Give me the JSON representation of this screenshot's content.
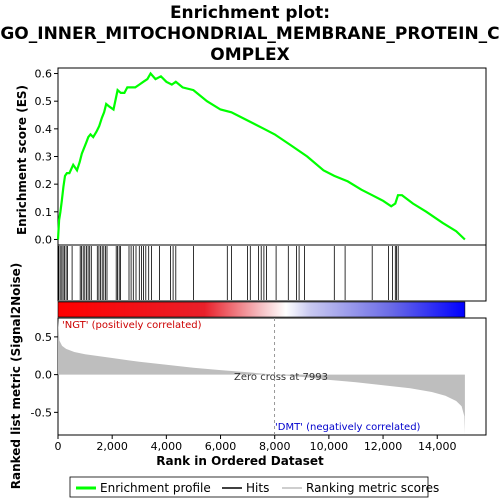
{
  "chart_data": {
    "type": "line",
    "title_lines": [
      "Enrichment plot:",
      "GO_INNER_MITOCHONDRIAL_MEMBRANE_PROTEIN_C",
      "OMPLEX"
    ],
    "top_panel": {
      "ylabel": "Enrichment score (ES)",
      "ylim": [
        -0.02,
        0.62
      ],
      "yticks": [
        0.0,
        0.1,
        0.2,
        0.3,
        0.4,
        0.5,
        0.6
      ],
      "ytick_labels": [
        "0.0",
        "0.1",
        "0.2",
        "0.3",
        "0.4",
        "0.5",
        "0.6"
      ],
      "series": [
        {
          "name": "Enrichment profile",
          "color": "#00ff00",
          "x": [
            0,
            40,
            90,
            140,
            200,
            260,
            330,
            420,
            560,
            700,
            800,
            880,
            960,
            1040,
            1120,
            1200,
            1300,
            1420,
            1520,
            1620,
            1700,
            1780,
            1900,
            2050,
            2200,
            2320,
            2450,
            2560,
            2700,
            2850,
            3000,
            3150,
            3300,
            3420,
            3600,
            3800,
            4000,
            4200,
            4350,
            4600,
            5000,
            5500,
            6000,
            6400,
            7000,
            7600,
            8000,
            8600,
            9200,
            9800,
            10200,
            10700,
            11200,
            11600,
            12000,
            12300,
            12450,
            12550,
            12700,
            13100,
            13600,
            14200,
            14700,
            15022
          ],
          "values": [
            0.0,
            0.07,
            0.1,
            0.14,
            0.19,
            0.23,
            0.24,
            0.24,
            0.27,
            0.25,
            0.28,
            0.31,
            0.33,
            0.35,
            0.37,
            0.38,
            0.37,
            0.39,
            0.41,
            0.44,
            0.46,
            0.49,
            0.48,
            0.47,
            0.54,
            0.53,
            0.53,
            0.55,
            0.55,
            0.55,
            0.56,
            0.57,
            0.58,
            0.6,
            0.58,
            0.59,
            0.57,
            0.56,
            0.57,
            0.55,
            0.54,
            0.5,
            0.47,
            0.46,
            0.43,
            0.4,
            0.38,
            0.34,
            0.3,
            0.25,
            0.23,
            0.21,
            0.18,
            0.16,
            0.14,
            0.12,
            0.13,
            0.16,
            0.16,
            0.13,
            0.1,
            0.06,
            0.03,
            0.0
          ]
        }
      ]
    },
    "hits": {
      "name": "Hits",
      "positions": [
        30,
        80,
        140,
        190,
        240,
        300,
        350,
        520,
        820,
        870,
        930,
        990,
        1050,
        1110,
        1170,
        1230,
        1450,
        1510,
        1570,
        1630,
        1690,
        1750,
        1810,
        2150,
        2200,
        2260,
        2310,
        2620,
        2700,
        2780,
        2880,
        3000,
        3080,
        3160,
        3240,
        3350,
        3450,
        3750,
        4150,
        4250,
        4350,
        5000,
        6250,
        6400,
        7000,
        7100,
        7400,
        7500,
        7600,
        7700,
        8050,
        8500,
        8800,
        8900,
        9100,
        10200,
        10600,
        11600,
        12200,
        12350,
        12450,
        12500,
        12560
      ]
    },
    "ranked_bar": {
      "left_color": "#ff0000",
      "mid_color": "#ffffff",
      "right_color": "#0000ff",
      "zero_cross": 7993
    },
    "bottom_panel": {
      "ylabel": "Ranked list metric (Signal2Noise)",
      "xlabel": "Rank in Ordered Dataset",
      "ylim": [
        -0.8,
        0.75
      ],
      "yticks": [
        -0.5,
        0.0,
        0.5
      ],
      "ytick_labels": [
        "-0.5",
        "0.0",
        "0.5"
      ],
      "xlim": [
        0,
        15800
      ],
      "xticks": [
        0,
        2000,
        4000,
        6000,
        8000,
        10000,
        12000,
        14000
      ],
      "xtick_labels": [
        "0",
        "2,000",
        "4,000",
        "6,000",
        "8,000",
        "10,000",
        "12,000",
        "14,000"
      ],
      "metric_x": [
        0,
        50,
        150,
        300,
        600,
        1000,
        2000,
        3000,
        4000,
        5000,
        6000,
        7000,
        7993,
        9000,
        10000,
        11000,
        12000,
        13000,
        13800,
        14300,
        14700,
        14900,
        15000,
        15022
      ],
      "metric_y": [
        0.72,
        0.45,
        0.38,
        0.34,
        0.3,
        0.27,
        0.22,
        0.17,
        0.13,
        0.09,
        0.06,
        0.03,
        0.0,
        -0.03,
        -0.07,
        -0.1,
        -0.14,
        -0.18,
        -0.23,
        -0.28,
        -0.35,
        -0.42,
        -0.55,
        -0.78
      ],
      "fill_color": "#bebebe"
    },
    "annotations": {
      "pos_label": "'NGT' (positively correlated)",
      "neg_label": "'DMT' (negatively correlated)",
      "zero_cross_label": "Zero cross at 7993",
      "pos_color": "#cc0000",
      "neg_color": "#0000cc"
    },
    "legend": {
      "items": [
        {
          "label": "Enrichment profile",
          "color": "#00ff00",
          "style": "thick-line"
        },
        {
          "label": "Hits",
          "color": "#000000",
          "style": "line"
        },
        {
          "label": "Ranking metric scores",
          "color": "#bebebe",
          "style": "line"
        }
      ]
    }
  }
}
